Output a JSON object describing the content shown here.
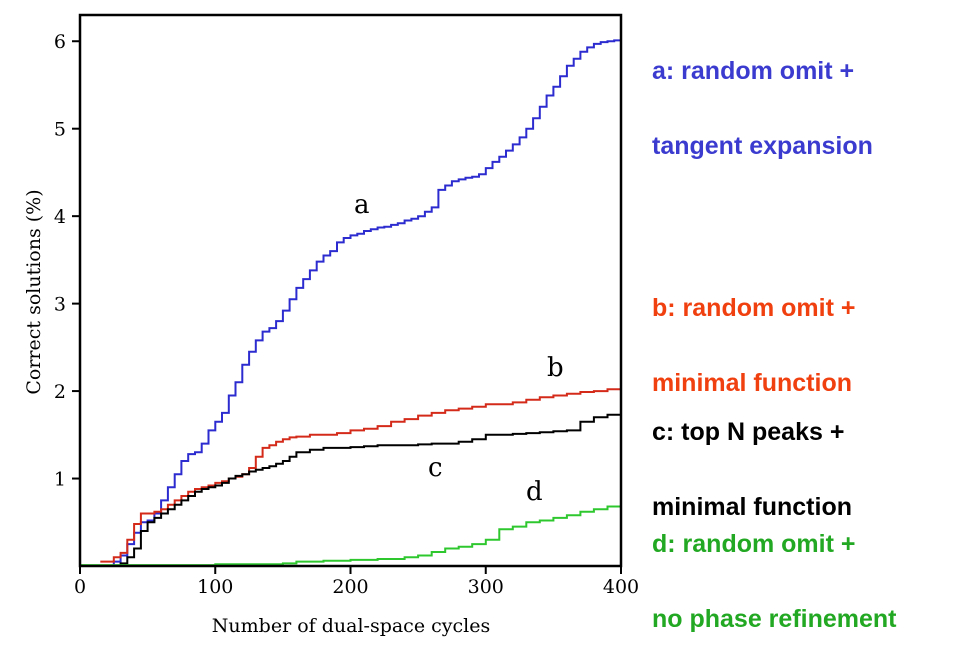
{
  "chart_data": {
    "type": "line",
    "xlabel": "Number of dual-space cycles",
    "ylabel": "Correct solutions (%)",
    "xlim": [
      0,
      400
    ],
    "ylim": [
      0,
      6.3
    ],
    "xticks": [
      0,
      100,
      200,
      300,
      400
    ],
    "yticks": [
      1,
      2,
      3,
      4,
      5,
      6
    ],
    "grid": false,
    "series": [
      {
        "name": "a",
        "color": "#2b2bd0",
        "x": [
          15,
          20,
          25,
          30,
          35,
          40,
          45,
          50,
          55,
          60,
          65,
          70,
          75,
          80,
          85,
          90,
          95,
          100,
          105,
          110,
          115,
          120,
          125,
          130,
          135,
          140,
          145,
          150,
          155,
          160,
          165,
          170,
          175,
          180,
          185,
          190,
          195,
          200,
          205,
          210,
          215,
          220,
          225,
          230,
          235,
          240,
          245,
          250,
          255,
          260,
          265,
          270,
          275,
          280,
          285,
          290,
          295,
          300,
          305,
          310,
          315,
          320,
          325,
          330,
          335,
          340,
          345,
          350,
          355,
          360,
          365,
          370,
          375,
          380,
          385,
          390,
          395,
          400
        ],
        "values": [
          0,
          0,
          0.05,
          0.12,
          0.25,
          0.38,
          0.5,
          0.52,
          0.6,
          0.75,
          0.9,
          1.05,
          1.2,
          1.28,
          1.3,
          1.4,
          1.55,
          1.65,
          1.75,
          1.95,
          2.1,
          2.3,
          2.45,
          2.58,
          2.68,
          2.72,
          2.8,
          2.92,
          3.05,
          3.18,
          3.28,
          3.38,
          3.48,
          3.55,
          3.6,
          3.7,
          3.75,
          3.78,
          3.8,
          3.83,
          3.85,
          3.87,
          3.88,
          3.9,
          3.92,
          3.95,
          3.97,
          4,
          4.05,
          4.1,
          4.3,
          4.35,
          4.4,
          4.42,
          4.44,
          4.45,
          4.48,
          4.55,
          4.62,
          4.68,
          4.75,
          4.82,
          4.9,
          5.0,
          5.12,
          5.25,
          5.38,
          5.48,
          5.6,
          5.72,
          5.8,
          5.88,
          5.93,
          5.97,
          5.99,
          6.0,
          6.01,
          6.02
        ]
      },
      {
        "name": "b",
        "color": "#d42a1a",
        "x": [
          15,
          20,
          25,
          30,
          35,
          40,
          45,
          50,
          55,
          60,
          65,
          70,
          75,
          80,
          85,
          90,
          95,
          100,
          105,
          110,
          115,
          120,
          125,
          130,
          135,
          140,
          145,
          150,
          155,
          160,
          170,
          180,
          190,
          200,
          210,
          220,
          230,
          240,
          250,
          260,
          270,
          280,
          290,
          300,
          310,
          320,
          330,
          340,
          350,
          360,
          370,
          380,
          390,
          400
        ],
        "values": [
          0.05,
          0.05,
          0.1,
          0.15,
          0.3,
          0.48,
          0.6,
          0.6,
          0.62,
          0.65,
          0.7,
          0.75,
          0.8,
          0.85,
          0.88,
          0.9,
          0.92,
          0.95,
          0.97,
          1.0,
          1.02,
          1.05,
          1.12,
          1.25,
          1.35,
          1.38,
          1.42,
          1.45,
          1.47,
          1.48,
          1.5,
          1.5,
          1.52,
          1.55,
          1.57,
          1.6,
          1.65,
          1.68,
          1.72,
          1.75,
          1.78,
          1.8,
          1.82,
          1.85,
          1.85,
          1.87,
          1.9,
          1.93,
          1.95,
          1.97,
          1.99,
          2.0,
          2.02,
          2.03
        ]
      },
      {
        "name": "c",
        "color": "#000000",
        "x": [
          25,
          30,
          35,
          40,
          45,
          50,
          55,
          60,
          65,
          70,
          75,
          80,
          85,
          90,
          95,
          100,
          105,
          110,
          115,
          120,
          125,
          130,
          135,
          140,
          145,
          150,
          155,
          160,
          170,
          180,
          190,
          200,
          210,
          220,
          230,
          240,
          250,
          260,
          270,
          280,
          290,
          300,
          310,
          320,
          330,
          340,
          350,
          360,
          370,
          380,
          390,
          400
        ],
        "values": [
          0,
          0.03,
          0.1,
          0.2,
          0.4,
          0.5,
          0.55,
          0.6,
          0.65,
          0.7,
          0.75,
          0.8,
          0.85,
          0.88,
          0.9,
          0.92,
          0.95,
          1.0,
          1.03,
          1.05,
          1.08,
          1.1,
          1.12,
          1.14,
          1.17,
          1.2,
          1.25,
          1.3,
          1.33,
          1.35,
          1.35,
          1.36,
          1.37,
          1.38,
          1.38,
          1.38,
          1.39,
          1.4,
          1.4,
          1.42,
          1.45,
          1.5,
          1.5,
          1.51,
          1.52,
          1.53,
          1.54,
          1.55,
          1.65,
          1.7,
          1.73,
          1.75
        ]
      },
      {
        "name": "d",
        "color": "#2ec82e",
        "x": [
          0,
          50,
          100,
          150,
          160,
          180,
          200,
          220,
          240,
          250,
          260,
          270,
          280,
          290,
          300,
          310,
          320,
          330,
          340,
          350,
          360,
          370,
          380,
          390,
          400
        ],
        "values": [
          0.01,
          0.01,
          0.02,
          0.03,
          0.05,
          0.06,
          0.07,
          0.08,
          0.1,
          0.12,
          0.16,
          0.2,
          0.22,
          0.25,
          0.3,
          0.42,
          0.45,
          0.5,
          0.52,
          0.55,
          0.58,
          0.62,
          0.65,
          0.68,
          0.7
        ]
      }
    ],
    "curve_labels": [
      "a",
      "b",
      "c",
      "d"
    ]
  },
  "legend": [
    {
      "lines": [
        "a: random omit +",
        "tangent expansion"
      ],
      "color": "#3b3bd0"
    },
    {
      "lines": [
        "b: random omit +",
        "minimal function"
      ],
      "color": "#f04010"
    },
    {
      "lines": [
        "c: top N peaks +",
        "minimal function"
      ],
      "color": "#000000"
    },
    {
      "lines": [
        "d: random omit +",
        "no phase refinement"
      ],
      "color": "#22a822"
    }
  ]
}
